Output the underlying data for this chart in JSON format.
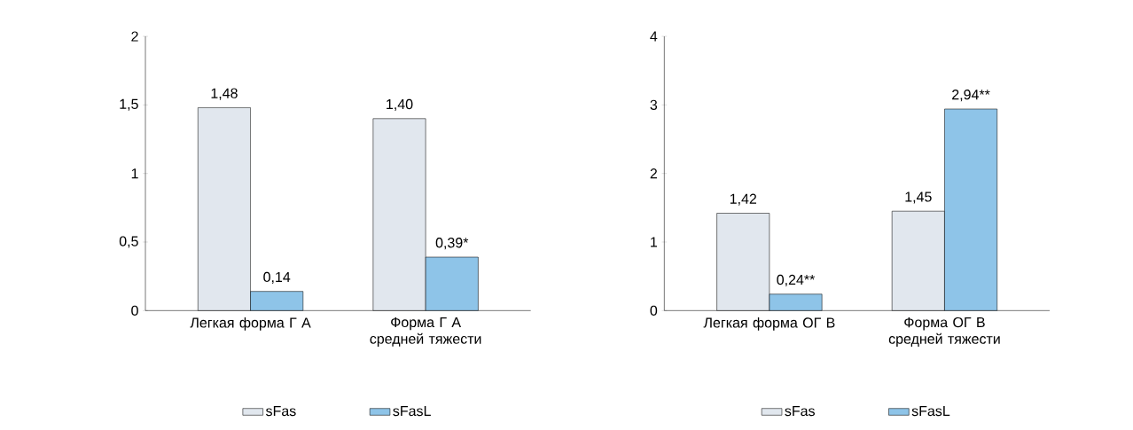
{
  "chart_data": [
    {
      "type": "bar",
      "categories": [
        "Легкая форма Г А",
        "Форма Г А средней тяжести"
      ],
      "series": [
        {
          "name": "sFas",
          "color": "#e1e7ee",
          "values": [
            1.48,
            1.4
          ],
          "value_labels": [
            "1,48",
            "1,40"
          ]
        },
        {
          "name": "sFasL",
          "color": "#8ec4e8",
          "values": [
            0.14,
            0.39
          ],
          "value_labels": [
            "0,14",
            "0,39*"
          ]
        }
      ],
      "ylim": [
        0,
        2
      ],
      "yticks": [
        0,
        {
          "value": 0.5,
          "label": "0,5"
        },
        1,
        {
          "value": 1.5,
          "label": "1,5"
        },
        2
      ],
      "legend": "bottom"
    },
    {
      "type": "bar",
      "categories": [
        "Легкая форма ОГ В",
        "Форма ОГ В средней тяжести"
      ],
      "series": [
        {
          "name": "sFas",
          "color": "#e1e7ee",
          "values": [
            1.42,
            1.45
          ],
          "value_labels": [
            "1,42",
            "1,45"
          ]
        },
        {
          "name": "sFasL",
          "color": "#8ec4e8",
          "values": [
            0.24,
            2.94
          ],
          "value_labels": [
            "0,24**",
            "2,94**"
          ]
        }
      ],
      "ylim": [
        0,
        4
      ],
      "yticks": [
        0,
        1,
        2,
        3,
        4
      ],
      "legend": "bottom"
    }
  ]
}
